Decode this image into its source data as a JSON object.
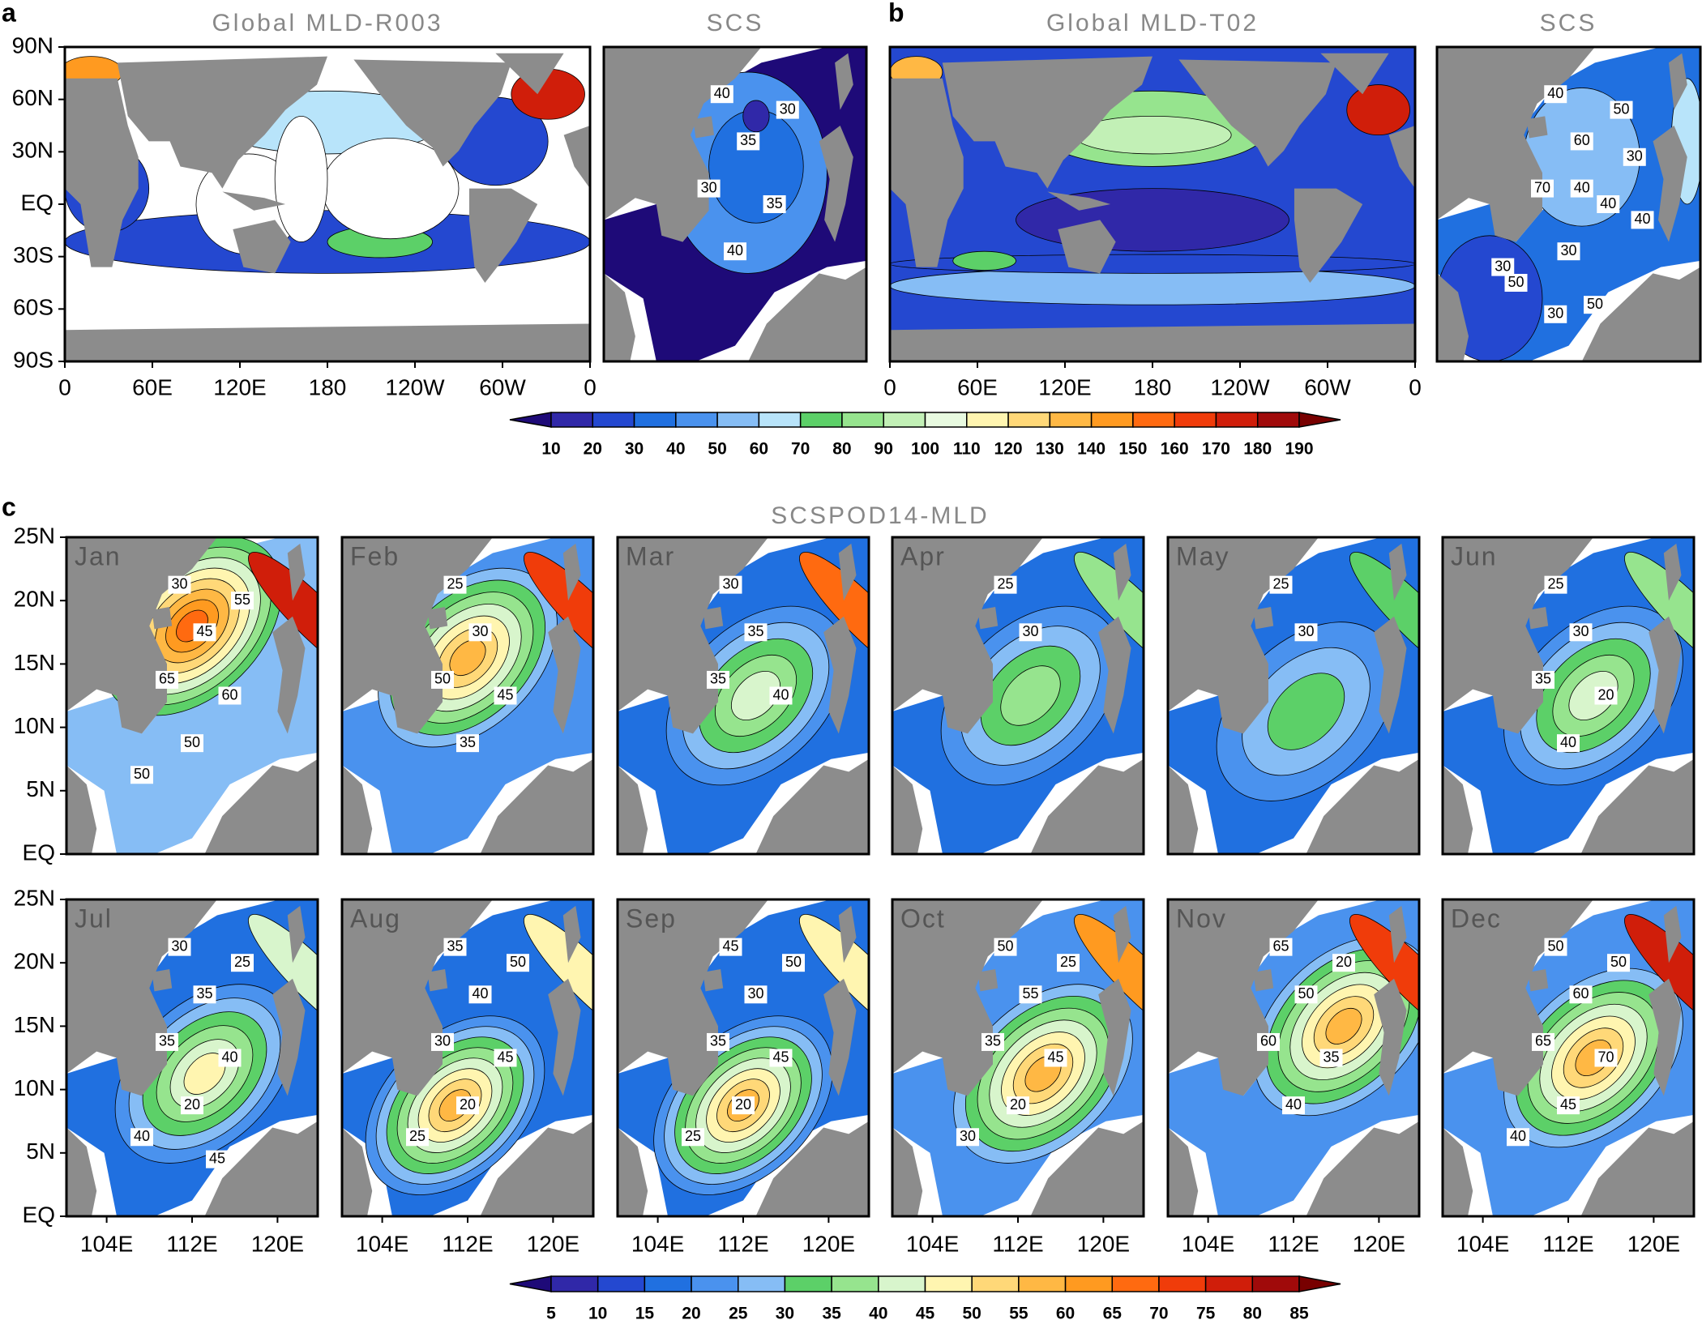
{
  "panel_a": {
    "label": "a",
    "global_title": "Global MLD-R003",
    "scs_title": "SCS",
    "scs_contour_labels": [
      40,
      35,
      30,
      35,
      40,
      30
    ]
  },
  "panel_b": {
    "label": "b",
    "global_title": "Global MLD-T02",
    "scs_title": "SCS",
    "scs_contour_labels": [
      40,
      60,
      70,
      40,
      30,
      50,
      50,
      50,
      40,
      30,
      30,
      40,
      30
    ]
  },
  "global_y_labels": [
    "90N",
    "60N",
    "30N",
    "EQ",
    "30S",
    "60S",
    "90S"
  ],
  "global_x_labels": [
    "0",
    "60E",
    "120E",
    "180",
    "120W",
    "60W",
    "0"
  ],
  "colorbar_top": {
    "levels": [
      10,
      20,
      30,
      40,
      50,
      60,
      70,
      80,
      90,
      100,
      110,
      120,
      130,
      140,
      150,
      160,
      170,
      180,
      190
    ],
    "colors": [
      "#1e0a78",
      "#3028a8",
      "#2448d0",
      "#2070e0",
      "#4a92ee",
      "#86bdf5",
      "#b8e4fa",
      "#5cd068",
      "#96e48e",
      "#c2f0b6",
      "#e8fae0",
      "#fff5b0",
      "#ffd878",
      "#ffb844",
      "#ff9a20",
      "#ff6a10",
      "#f03c0a",
      "#d01e0a",
      "#a00a0a",
      "#780000"
    ]
  },
  "panel_c": {
    "label": "c",
    "title": "SCSPOD14-MLD",
    "y_labels": [
      "25N",
      "20N",
      "15N",
      "10N",
      "5N",
      "EQ"
    ],
    "x_labels": [
      "104E",
      "112E",
      "120E"
    ],
    "months": [
      {
        "name": "Jan",
        "contour_labels": [
          30,
          45,
          65,
          60,
          50,
          55,
          50
        ]
      },
      {
        "name": "Feb",
        "contour_labels": [
          25,
          30,
          50,
          45,
          35
        ]
      },
      {
        "name": "Mar",
        "contour_labels": [
          30,
          35,
          35,
          40
        ]
      },
      {
        "name": "Apr",
        "contour_labels": [
          25,
          30
        ]
      },
      {
        "name": "May",
        "contour_labels": [
          25,
          30
        ]
      },
      {
        "name": "Jun",
        "contour_labels": [
          25,
          30,
          35,
          20,
          40
        ]
      },
      {
        "name": "Jul",
        "contour_labels": [
          30,
          35,
          35,
          40,
          20,
          25,
          40,
          45
        ]
      },
      {
        "name": "Aug",
        "contour_labels": [
          35,
          40,
          30,
          45,
          20,
          50,
          25
        ]
      },
      {
        "name": "Sep",
        "contour_labels": [
          45,
          30,
          35,
          45,
          20,
          50,
          25
        ]
      },
      {
        "name": "Oct",
        "contour_labels": [
          50,
          55,
          35,
          45,
          20,
          25,
          30
        ]
      },
      {
        "name": "Nov",
        "contour_labels": [
          65,
          50,
          60,
          35,
          40,
          20
        ]
      },
      {
        "name": "Dec",
        "contour_labels": [
          50,
          60,
          65,
          70,
          45,
          50,
          40
        ]
      }
    ]
  },
  "colorbar_bottom": {
    "levels": [
      5,
      10,
      15,
      20,
      25,
      30,
      35,
      40,
      45,
      50,
      55,
      60,
      65,
      70,
      75,
      80,
      85
    ],
    "colors": [
      "#1e0a78",
      "#3028a8",
      "#2448d0",
      "#2070e0",
      "#4a92ee",
      "#86bdf5",
      "#5cd068",
      "#96e48e",
      "#d8f5cc",
      "#fff5b0",
      "#ffd878",
      "#ffb844",
      "#ff9a20",
      "#ff6a10",
      "#f03c0a",
      "#d01e0a",
      "#a00a0a",
      "#780000"
    ]
  }
}
